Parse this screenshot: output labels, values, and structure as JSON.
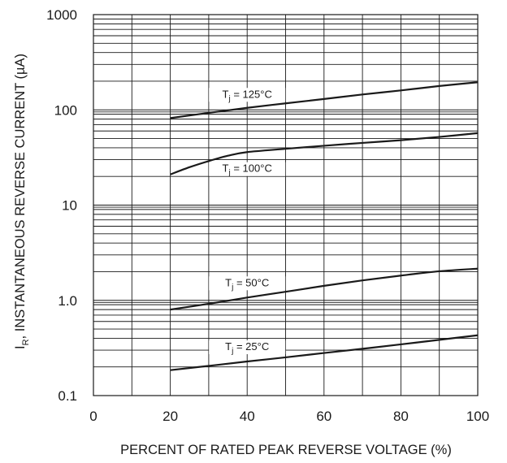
{
  "chart_data": {
    "type": "line",
    "title": "",
    "xlabel": "PERCENT OF RATED PEAK REVERSE VOLTAGE (%)",
    "ylabel_main": "I",
    "ylabel_sub": "R",
    "ylabel_rest": ", INSTANTANEOUS REVERSE CURRENT (µA)",
    "y_scale": "log",
    "xlim": [
      0,
      100
    ],
    "ylim": [
      0.1,
      1000
    ],
    "x_ticks": [
      0,
      20,
      40,
      60,
      80,
      100
    ],
    "x_tick_labels": [
      "0",
      "20",
      "40",
      "60",
      "80",
      "100"
    ],
    "y_ticks": [
      0.1,
      1,
      10,
      100,
      1000
    ],
    "y_tick_labels": [
      "0.1",
      "1.0",
      "10",
      "100",
      "1000"
    ],
    "grid": true,
    "series": [
      {
        "label_main": "T",
        "label_sub": "j",
        "label_rest": " = 125°C",
        "x": [
          20,
          30,
          40,
          50,
          60,
          70,
          80,
          90,
          100
        ],
        "y": [
          82,
          93,
          105,
          117,
          130,
          145,
          160,
          178,
          195
        ]
      },
      {
        "label_main": "T",
        "label_sub": "j",
        "label_rest": " = 100°C",
        "x": [
          20,
          25,
          30,
          35,
          40,
          50,
          60,
          70,
          80,
          90,
          100
        ],
        "y": [
          21,
          25,
          29,
          33,
          36,
          39,
          42,
          45,
          48,
          52,
          57
        ]
      },
      {
        "label_main": "T",
        "label_sub": "j",
        "label_rest": " = 50°C",
        "x": [
          20,
          30,
          40,
          50,
          60,
          70,
          80,
          90,
          100
        ],
        "y": [
          0.8,
          0.92,
          1.07,
          1.23,
          1.42,
          1.62,
          1.82,
          2.02,
          2.15
        ]
      },
      {
        "label_main": "T",
        "label_sub": "j",
        "label_rest": " = 25°C",
        "x": [
          20,
          30,
          40,
          50,
          60,
          70,
          80,
          90,
          100
        ],
        "y": [
          0.185,
          0.205,
          0.228,
          0.252,
          0.28,
          0.31,
          0.345,
          0.385,
          0.43
        ]
      }
    ]
  }
}
